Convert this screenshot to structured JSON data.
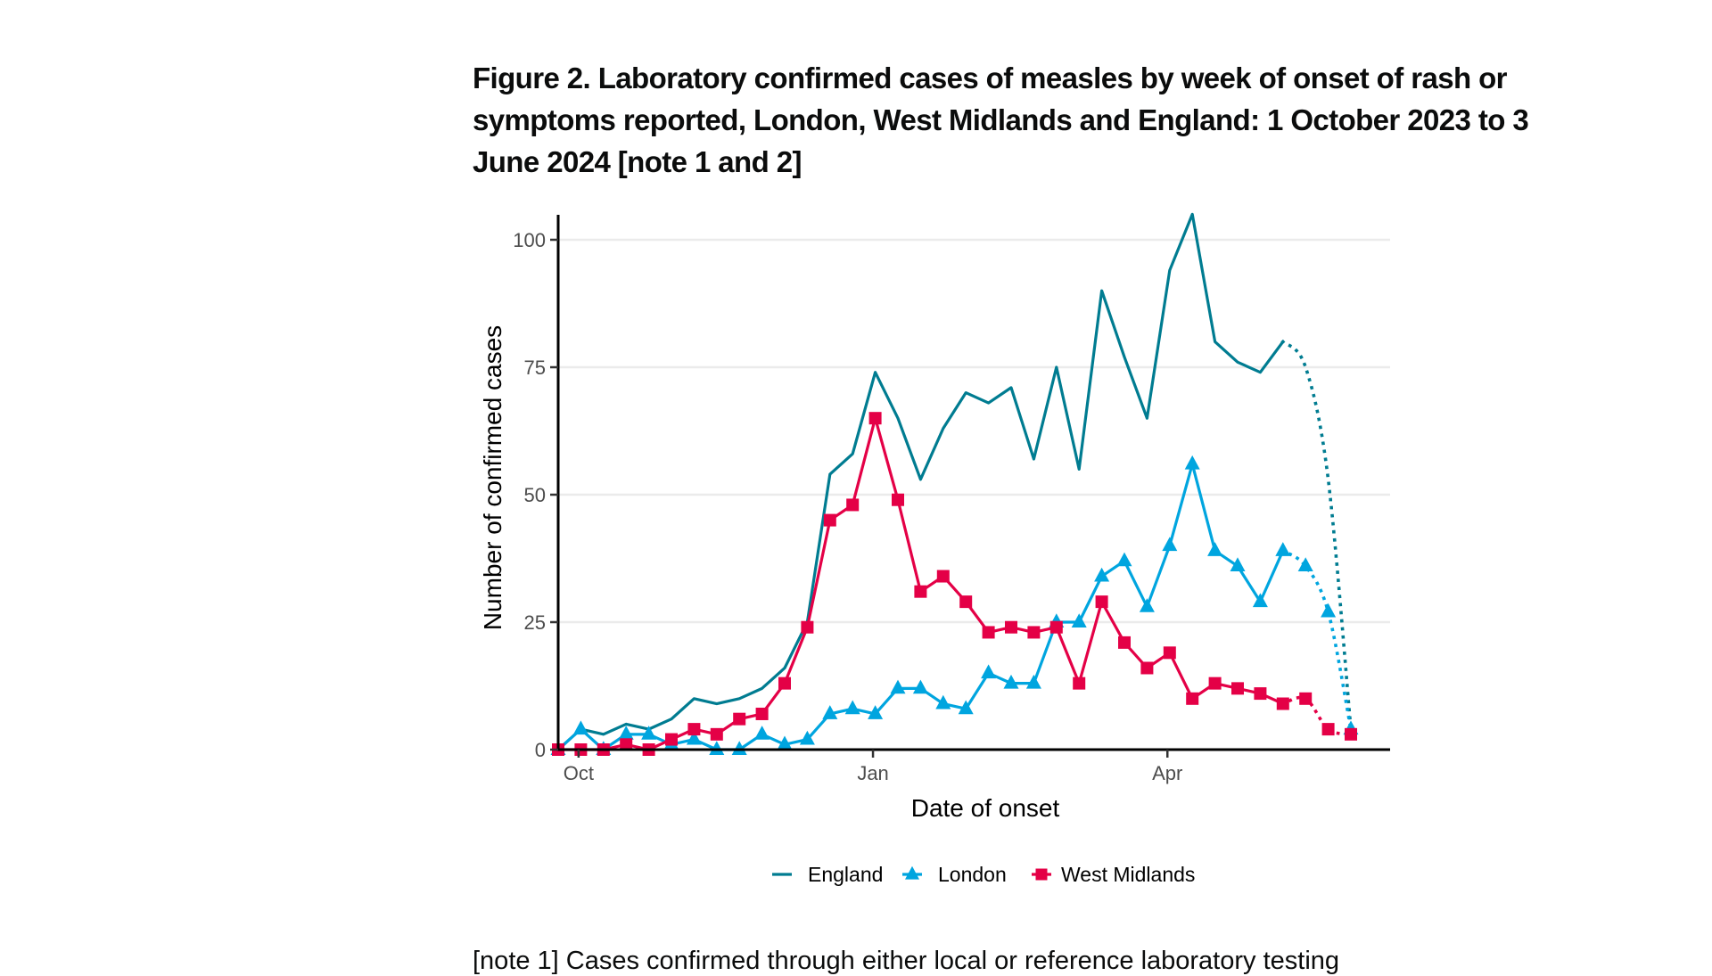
{
  "figure": {
    "title": "Figure 2. Laboratory confirmed cases of measles by week of onset of rash or symptoms reported, London, West Midlands and England: 1 October 2023 to 3 June 2024 [note 1 and 2]",
    "note_text": "[note 1] Cases confirmed through either local or reference laboratory testing"
  },
  "chart_data": {
    "type": "line",
    "title": "Figure 2. Laboratory confirmed cases of measles by week of onset of rash or symptoms reported, London, West Midlands and England: 1 October 2023 to 3 June 2024 [note 1 and 2]",
    "xlabel": "Date of onset",
    "ylabel": "Number of confirmed cases",
    "x_unit": "week index from 1 October 2023",
    "x": [
      0,
      1,
      2,
      3,
      4,
      5,
      6,
      7,
      8,
      9,
      10,
      11,
      12,
      13,
      14,
      15,
      16,
      17,
      18,
      19,
      20,
      21,
      22,
      23,
      24,
      25,
      26,
      27,
      28,
      29,
      30,
      31,
      32,
      33,
      34,
      35
    ],
    "xlim": [
      0,
      35
    ],
    "ylim": [
      0,
      105
    ],
    "yticks": [
      0,
      25,
      50,
      75,
      100
    ],
    "ytick_labels": [
      "0",
      "25",
      "50",
      "75",
      "100"
    ],
    "xticks": [
      {
        "label": "Oct",
        "week": 0.9
      },
      {
        "label": "Jan",
        "week": 13.9
      },
      {
        "label": "Apr",
        "week": 26.9
      }
    ],
    "grid": "horizontal major",
    "legend_position": "bottom",
    "provisional_from_index": 32,
    "series": [
      {
        "name": "England",
        "color": "#007C91",
        "marker": "none",
        "values": [
          0,
          4,
          3,
          5,
          4,
          6,
          10,
          9,
          10,
          12,
          16,
          25,
          54,
          58,
          74,
          65,
          53,
          63,
          70,
          68,
          71,
          57,
          75,
          55,
          90,
          77,
          65,
          94,
          105,
          80,
          76,
          74,
          80,
          75,
          53,
          4
        ]
      },
      {
        "name": "London",
        "color": "#00A5DF",
        "marker": "triangle",
        "values": [
          0,
          4,
          0,
          3,
          3,
          1,
          2,
          0,
          0,
          3,
          1,
          2,
          7,
          8,
          7,
          12,
          12,
          9,
          8,
          15,
          13,
          13,
          25,
          25,
          34,
          37,
          28,
          40,
          56,
          39,
          36,
          29,
          39,
          36,
          27,
          4
        ]
      },
      {
        "name": "West Midlands",
        "color": "#E40046",
        "marker": "square",
        "values": [
          0,
          0,
          0,
          1,
          0,
          2,
          4,
          3,
          6,
          7,
          13,
          24,
          45,
          48,
          65,
          49,
          31,
          34,
          29,
          23,
          24,
          23,
          24,
          13,
          29,
          21,
          16,
          19,
          10,
          13,
          12,
          11,
          9,
          10,
          4,
          3
        ]
      }
    ]
  }
}
